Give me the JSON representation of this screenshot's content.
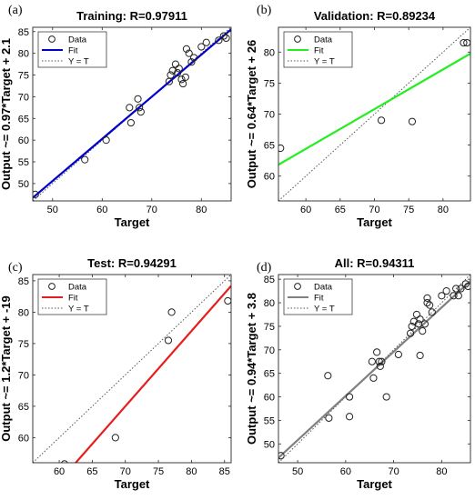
{
  "chart_data": [
    {
      "type": "scatter",
      "letter": "(a)",
      "title": "Training: R=0.97911",
      "xlabel": "Target",
      "ylabel": "Output ~= 0.97*Target + 2.1",
      "xlim": [
        46,
        86
      ],
      "ylim": [
        46,
        86
      ],
      "xticks": [
        50,
        60,
        70,
        80
      ],
      "yticks": [
        50,
        55,
        60,
        65,
        70,
        75,
        80,
        85
      ],
      "fit": {
        "slope": 0.97,
        "intercept": 2.1,
        "color": "#0000cc"
      },
      "legend": {
        "placement": "top-left",
        "entries": [
          "Data",
          "Fit",
          "Y = T"
        ]
      },
      "series": [
        {
          "name": "Data",
          "x": [
            46.5,
            56.5,
            60.8,
            65.5,
            65.8,
            67.2,
            67.5,
            67.8,
            73.5,
            73.8,
            74.2,
            74.8,
            75.2,
            75.5,
            76.0,
            76.3,
            76.8,
            77.0,
            77.5,
            78.0,
            78.5,
            80.0,
            81.0,
            83.5,
            84.5,
            85.0
          ],
          "y": [
            47.5,
            55.5,
            60.0,
            67.5,
            64.0,
            69.5,
            67.5,
            66.5,
            73.5,
            75.0,
            76.0,
            77.5,
            75.5,
            76.5,
            74.0,
            73.0,
            74.5,
            81.0,
            80.0,
            78.0,
            79.0,
            81.5,
            82.5,
            83.0,
            84.0,
            83.5
          ]
        }
      ]
    },
    {
      "type": "scatter",
      "letter": "(b)",
      "title": "Validation: R=0.89234",
      "xlabel": "Target",
      "ylabel": "Output ~= 0.64*Target + 26",
      "xlim": [
        56,
        84
      ],
      "ylim": [
        56,
        84
      ],
      "xticks": [
        60,
        65,
        70,
        75,
        80
      ],
      "yticks": [
        60,
        65,
        70,
        75,
        80
      ],
      "fit": {
        "slope": 0.64,
        "intercept": 26,
        "color": "#22ee22"
      },
      "legend": {
        "placement": "top-left",
        "entries": [
          "Data",
          "Fit",
          "Y = T"
        ]
      },
      "series": [
        {
          "name": "Data",
          "x": [
            56.3,
            71.0,
            75.5,
            83.0,
            83.5
          ],
          "y": [
            64.5,
            69.0,
            68.8,
            81.5,
            81.5
          ]
        }
      ]
    },
    {
      "type": "scatter",
      "letter": "(c)",
      "title": "Test: R=0.94291",
      "xlabel": "Target",
      "ylabel": "Output ~= 1.2*Target + -19",
      "xlim": [
        56,
        86
      ],
      "ylim": [
        56,
        86
      ],
      "xticks": [
        60,
        65,
        70,
        75,
        80,
        85
      ],
      "yticks": [
        60,
        65,
        70,
        75,
        80,
        85
      ],
      "fit": {
        "slope": 1.2,
        "intercept": -19,
        "color": "#e81c1c"
      },
      "legend": {
        "placement": "top-left",
        "entries": [
          "Data",
          "Fit",
          "Y = T"
        ]
      },
      "series": [
        {
          "name": "Data",
          "x": [
            60.8,
            68.5,
            76.5,
            77.0,
            85.5
          ],
          "y": [
            55.8,
            60.0,
            75.5,
            80.0,
            81.8
          ]
        }
      ]
    },
    {
      "type": "scatter",
      "letter": "(d)",
      "title": "All: R=0.94311",
      "xlabel": "Target",
      "ylabel": "Output ~= 0.94*Target + 3.8",
      "xlim": [
        46,
        86
      ],
      "ylim": [
        46,
        86
      ],
      "xticks": [
        50,
        60,
        70,
        80
      ],
      "yticks": [
        50,
        55,
        60,
        65,
        70,
        75,
        80,
        85
      ],
      "fit": {
        "slope": 0.94,
        "intercept": 3.8,
        "color": "#808080"
      },
      "legend": {
        "placement": "top-left",
        "entries": [
          "Data",
          "Fit",
          "Y = T"
        ]
      },
      "series": [
        {
          "name": "Data",
          "x": [
            46.5,
            56.3,
            56.5,
            60.8,
            60.8,
            65.5,
            65.8,
            66.5,
            67.0,
            67.2,
            67.5,
            68.5,
            71.0,
            73.5,
            73.8,
            74.2,
            74.8,
            75.2,
            75.5,
            75.5,
            76.0,
            76.5,
            77.0,
            77.0,
            77.5,
            78.0,
            80.0,
            81.0,
            82.5,
            83.0,
            83.5,
            84.0,
            85.0,
            85.5
          ],
          "y": [
            47.5,
            64.5,
            55.5,
            60.0,
            55.8,
            67.5,
            64.0,
            69.5,
            67.5,
            66.5,
            67.5,
            60.0,
            69.0,
            73.5,
            75.0,
            76.0,
            77.5,
            75.5,
            76.5,
            68.8,
            74.0,
            75.5,
            81.0,
            80.0,
            79.5,
            78.0,
            81.5,
            82.5,
            81.5,
            83.0,
            81.5,
            83.0,
            84.0,
            83.5
          ]
        }
      ]
    }
  ]
}
